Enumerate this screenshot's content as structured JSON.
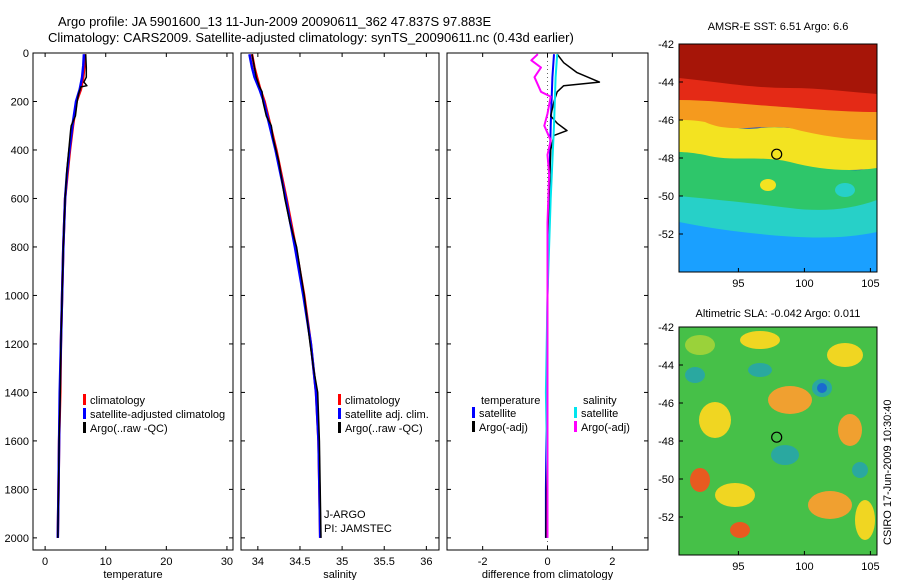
{
  "header": {
    "line1": "Argo profile: JA 5901600_13 11-Jun-2009 20090611_362 47.837S 97.883E",
    "line2": "Climatology: CARS2009. Satellite-adjusted climatology: synTS_20090611.nc (0.43d earlier)"
  },
  "side_label": "CSIRO 17-Jun-2009 10:30:40",
  "pi_text": [
    "J-ARGO",
    "PI: JAMSTEC"
  ],
  "colors": {
    "climatology": "#ff0000",
    "satellite": "#0000ff",
    "argo": "#000000",
    "sal_satellite": "#00e5ee",
    "sal_argo": "#ff00ff"
  },
  "chart_data": [
    {
      "id": "temperature",
      "type": "line",
      "xlabel": "temperature",
      "xlim": [
        -2,
        31
      ],
      "ylim": [
        0,
        2050
      ],
      "xticks": [
        0,
        10,
        20,
        30
      ],
      "xtick_labels": [
        "0",
        "10",
        "20",
        "30"
      ],
      "yticks": [
        0,
        200,
        400,
        600,
        800,
        1000,
        1200,
        1400,
        1600,
        1800,
        2000
      ],
      "ytick_labels": [
        "0",
        "200",
        "400",
        "600",
        "800",
        "1000",
        "1200",
        "1400",
        "1600",
        "1800",
        "2000"
      ],
      "legend": [
        "climatology",
        "satellite-adjusted climatolog",
        "Argo(..raw -QC)"
      ],
      "series": [
        {
          "name": "climatology",
          "color": "#ff0000",
          "width": 2.5,
          "points": [
            [
              6.6,
              5
            ],
            [
              6.5,
              50
            ],
            [
              6.3,
              100
            ],
            [
              5.9,
              150
            ],
            [
              5.2,
              200
            ],
            [
              4.6,
              300
            ],
            [
              4.1,
              400
            ],
            [
              3.7,
              500
            ],
            [
              3.3,
              600
            ],
            [
              3.0,
              800
            ],
            [
              2.8,
              1000
            ],
            [
              2.6,
              1200
            ],
            [
              2.5,
              1400
            ],
            [
              2.3,
              1600
            ],
            [
              2.2,
              1800
            ],
            [
              2.1,
              2000
            ]
          ]
        },
        {
          "name": "satellite-adjusted climatology",
          "color": "#0000ff",
          "width": 2.5,
          "points": [
            [
              6.4,
              5
            ],
            [
              6.3,
              50
            ],
            [
              6.1,
              100
            ],
            [
              5.7,
              150
            ],
            [
              5.1,
              200
            ],
            [
              4.5,
              300
            ],
            [
              4.0,
              400
            ],
            [
              3.6,
              500
            ],
            [
              3.3,
              600
            ],
            [
              3.0,
              800
            ],
            [
              2.8,
              1000
            ],
            [
              2.6,
              1200
            ],
            [
              2.4,
              1400
            ],
            [
              2.3,
              1600
            ],
            [
              2.2,
              1800
            ],
            [
              2.1,
              2000
            ]
          ]
        },
        {
          "name": "Argo(..raw -QC)",
          "color": "#000000",
          "width": 1.5,
          "points": [
            [
              6.7,
              5
            ],
            [
              6.8,
              60
            ],
            [
              6.8,
              100
            ],
            [
              6.4,
              120
            ],
            [
              6.9,
              135
            ],
            [
              5.9,
              140
            ],
            [
              5.5,
              170
            ],
            [
              5.3,
              200
            ],
            [
              5.0,
              260
            ],
            [
              4.3,
              300
            ],
            [
              4.2,
              320
            ],
            [
              3.9,
              400
            ],
            [
              3.6,
              480
            ],
            [
              3.3,
              600
            ],
            [
              3.0,
              800
            ],
            [
              2.8,
              1000
            ],
            [
              2.6,
              1200
            ],
            [
              2.5,
              1400
            ],
            [
              2.3,
              1600
            ],
            [
              2.2,
              1800
            ],
            [
              2.1,
              2000
            ]
          ]
        }
      ]
    },
    {
      "id": "salinity",
      "type": "line",
      "xlabel": "salinity",
      "xlim": [
        33.8,
        36.15
      ],
      "ylim": [
        0,
        2050
      ],
      "xticks": [
        34,
        34.5,
        35,
        35.5,
        36
      ],
      "xtick_labels": [
        "34",
        "34.5",
        "35",
        "35.5",
        "36"
      ],
      "yticks": [
        0,
        200,
        400,
        600,
        800,
        1000,
        1200,
        1400,
        1600,
        1800,
        2000
      ],
      "legend": [
        "climatology",
        "satellite adj. clim.",
        "Argo(..raw -QC)"
      ],
      "series": [
        {
          "name": "climatology",
          "color": "#ff0000",
          "width": 2.5,
          "points": [
            [
              33.93,
              5
            ],
            [
              33.96,
              60
            ],
            [
              33.99,
              100
            ],
            [
              34.03,
              150
            ],
            [
              34.08,
              200
            ],
            [
              34.15,
              300
            ],
            [
              34.22,
              400
            ],
            [
              34.28,
              500
            ],
            [
              34.34,
              600
            ],
            [
              34.45,
              800
            ],
            [
              34.55,
              1000
            ],
            [
              34.63,
              1200
            ],
            [
              34.69,
              1400
            ],
            [
              34.72,
              1600
            ],
            [
              34.73,
              1800
            ],
            [
              34.74,
              2000
            ]
          ]
        },
        {
          "name": "satellite adj. clim.",
          "color": "#0000ff",
          "width": 2.5,
          "points": [
            [
              33.9,
              5
            ],
            [
              33.93,
              60
            ],
            [
              33.96,
              100
            ],
            [
              34.02,
              150
            ],
            [
              34.07,
              200
            ],
            [
              34.14,
              300
            ],
            [
              34.21,
              400
            ],
            [
              34.27,
              500
            ],
            [
              34.33,
              600
            ],
            [
              34.44,
              800
            ],
            [
              34.54,
              1000
            ],
            [
              34.63,
              1200
            ],
            [
              34.69,
              1400
            ],
            [
              34.72,
              1600
            ],
            [
              34.73,
              1800
            ],
            [
              34.74,
              2000
            ]
          ]
        },
        {
          "name": "Argo(..raw -QC)",
          "color": "#000000",
          "width": 1.5,
          "points": [
            [
              33.93,
              5
            ],
            [
              33.95,
              40
            ],
            [
              33.98,
              100
            ],
            [
              34.02,
              140
            ],
            [
              34.05,
              160
            ],
            [
              34.06,
              200
            ],
            [
              34.1,
              260
            ],
            [
              34.16,
              300
            ],
            [
              34.18,
              350
            ],
            [
              34.25,
              450
            ],
            [
              34.32,
              600
            ],
            [
              34.38,
              700
            ],
            [
              34.46,
              800
            ],
            [
              34.55,
              1000
            ],
            [
              34.62,
              1200
            ],
            [
              34.66,
              1300
            ],
            [
              34.71,
              1400
            ],
            [
              34.73,
              1600
            ],
            [
              34.74,
              1800
            ],
            [
              34.75,
              2000
            ]
          ]
        }
      ]
    },
    {
      "id": "difference",
      "type": "line",
      "xlabel": "difference from climatology",
      "xlim": [
        -3.1,
        3.1
      ],
      "ylim": [
        0,
        2050
      ],
      "xticks": [
        -2,
        0,
        2
      ],
      "xtick_labels": [
        "-2",
        "0",
        "2"
      ],
      "yticks": [
        0,
        200,
        400,
        600,
        800,
        1000,
        1200,
        1400,
        1600,
        1800,
        2000
      ],
      "legend_headers": [
        "temperature",
        "salinity"
      ],
      "legend": [
        "satellite",
        "Argo(-adj)",
        "satellite",
        "Argo(-adj)"
      ],
      "series": [
        {
          "name": "temperature satellite",
          "color": "#0000ff",
          "width": 2,
          "points": [
            [
              0.2,
              5
            ],
            [
              0.15,
              100
            ],
            [
              0.1,
              300
            ],
            [
              0.05,
              600
            ],
            [
              0.0,
              1000
            ],
            [
              -0.02,
              1400
            ],
            [
              -0.05,
              1800
            ],
            [
              -0.05,
              2000
            ]
          ]
        },
        {
          "name": "temperature Argo(-adj)",
          "color": "#000000",
          "width": 1.5,
          "points": [
            [
              0.3,
              5
            ],
            [
              0.5,
              40
            ],
            [
              0.9,
              80
            ],
            [
              1.6,
              120
            ],
            [
              0.5,
              135
            ],
            [
              0.3,
              160
            ],
            [
              0.2,
              200
            ],
            [
              0.1,
              260
            ],
            [
              0.3,
              290
            ],
            [
              0.6,
              320
            ],
            [
              0.2,
              340
            ],
            [
              0.1,
              400
            ],
            [
              0.05,
              600
            ],
            [
              0.0,
              1000
            ],
            [
              0.0,
              1400
            ],
            [
              -0.05,
              2000
            ]
          ]
        },
        {
          "name": "salinity satellite",
          "color": "#00e5ee",
          "width": 2,
          "points": [
            [
              0.3,
              5
            ],
            [
              0.25,
              100
            ],
            [
              0.2,
              300
            ],
            [
              0.1,
              600
            ],
            [
              0.0,
              1000
            ],
            [
              -0.05,
              1400
            ],
            [
              0.0,
              1800
            ],
            [
              0.0,
              2000
            ]
          ]
        },
        {
          "name": "salinity Argo(-adj)",
          "color": "#ff00ff",
          "width": 2,
          "points": [
            [
              -0.3,
              5
            ],
            [
              -0.5,
              30
            ],
            [
              -0.2,
              60
            ],
            [
              -0.4,
              100
            ],
            [
              -0.2,
              160
            ],
            [
              0.1,
              180
            ],
            [
              0.0,
              250
            ],
            [
              -0.1,
              300
            ],
            [
              0.1,
              360
            ],
            [
              0.0,
              420
            ],
            [
              0.05,
              500
            ],
            [
              0.0,
              700
            ],
            [
              0.0,
              1000
            ],
            [
              0.0,
              1400
            ],
            [
              0.0,
              2000
            ]
          ]
        }
      ]
    },
    {
      "id": "sst_map",
      "type": "heatmap",
      "title": "AMSR-E SST: 6.51 Argo: 6.6",
      "xlim": [
        90.5,
        105.5
      ],
      "ylim": [
        -54,
        -42
      ],
      "xticks": [
        95,
        100,
        105
      ],
      "xtick_labels": [
        "95",
        "100",
        "105"
      ],
      "yticks": [
        -42,
        -44,
        -46,
        -48,
        -50,
        -52
      ],
      "ytick_labels": [
        "-42",
        "-44",
        "-46",
        "-48",
        "-50",
        "-52"
      ],
      "marker": {
        "lon": 97.9,
        "lat": -47.8
      }
    },
    {
      "id": "sla_map",
      "type": "heatmap",
      "title": "Altimetric SLA: -0.042 Argo: 0.011",
      "xlim": [
        90.5,
        105.5
      ],
      "ylim": [
        -54,
        -42
      ],
      "xticks": [
        95,
        100,
        105
      ],
      "xtick_labels": [
        "95",
        "100",
        "105"
      ],
      "yticks": [
        -42,
        -44,
        -46,
        -48,
        -50,
        -52
      ],
      "ytick_labels": [
        "-42",
        "-44",
        "-46",
        "-48",
        "-50",
        "-52"
      ],
      "marker": {
        "lon": 97.9,
        "lat": -47.8
      }
    }
  ]
}
